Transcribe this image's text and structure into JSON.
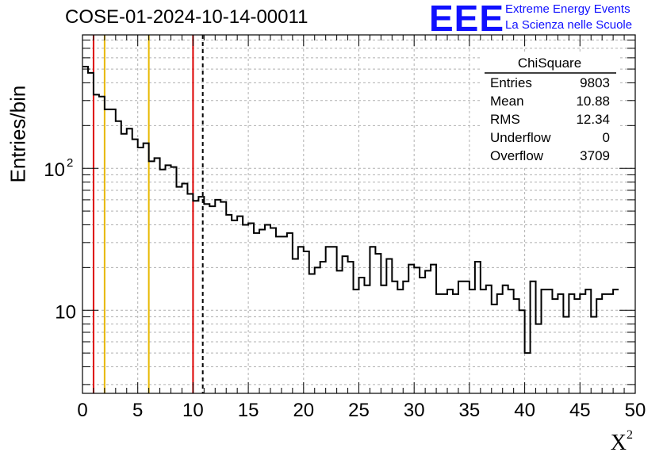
{
  "chart_data": {
    "type": "histogram",
    "title": "COSE-01-2024-10-14-00011",
    "xlabel": "X",
    "xlabel_superscript": "2",
    "ylabel": "Entries/bin",
    "xlim": [
      0,
      50
    ],
    "ylim": [
      2.6,
      870
    ],
    "yscale": "log",
    "grid": true,
    "x_ticks": [
      "0",
      "5",
      "10",
      "15",
      "20",
      "25",
      "30",
      "35",
      "40",
      "45",
      "50"
    ],
    "y_tick_labels": [
      {
        "value": 10,
        "base": "10",
        "exponent": ""
      },
      {
        "value": 100,
        "base": "10",
        "exponent": "2"
      }
    ],
    "bin_width": 0.5,
    "values": [
      520,
      470,
      330,
      320,
      260,
      260,
      215,
      175,
      190,
      160,
      140,
      150,
      112,
      118,
      98,
      105,
      102,
      74,
      78,
      66,
      59,
      63,
      56,
      54,
      60,
      58,
      47,
      43,
      46,
      40,
      41,
      35,
      37,
      40,
      38,
      33,
      33,
      35,
      23,
      28,
      26,
      18,
      20,
      22,
      28,
      28,
      19,
      24,
      22,
      14,
      17,
      15,
      28,
      25,
      15,
      23,
      16,
      14,
      16,
      21,
      20,
      17,
      19,
      21,
      13,
      13,
      14,
      13,
      16,
      16,
      14,
      22,
      14,
      15,
      11,
      13,
      15,
      14,
      12,
      10,
      5,
      16,
      8,
      14,
      14,
      12,
      13,
      9,
      13,
      12,
      13,
      14,
      9,
      12,
      13,
      13,
      14
    ],
    "vertical_lines": [
      {
        "x": 1,
        "color": "#dd0000",
        "style": "solid"
      },
      {
        "x": 2,
        "color": "#e8b800",
        "style": "solid"
      },
      {
        "x": 6,
        "color": "#e8b800",
        "style": "solid"
      },
      {
        "x": 10,
        "color": "#dd0000",
        "style": "solid"
      },
      {
        "x": 10.88,
        "color": "#000000",
        "style": "dashed"
      }
    ],
    "stats_box": {
      "title": "ChiSquare",
      "rows": [
        {
          "label": "Entries",
          "value": "9803"
        },
        {
          "label": "Mean",
          "value": "10.88"
        },
        {
          "label": "RMS",
          "value": "12.34"
        },
        {
          "label": "Underflow",
          "value": "0"
        },
        {
          "label": "Overflow",
          "value": "3709"
        }
      ]
    },
    "logo": {
      "mark": "EEE",
      "line1": "Extreme Energy Events",
      "line2": "La Scienza nelle Scuole",
      "color": "#1010ff"
    }
  }
}
